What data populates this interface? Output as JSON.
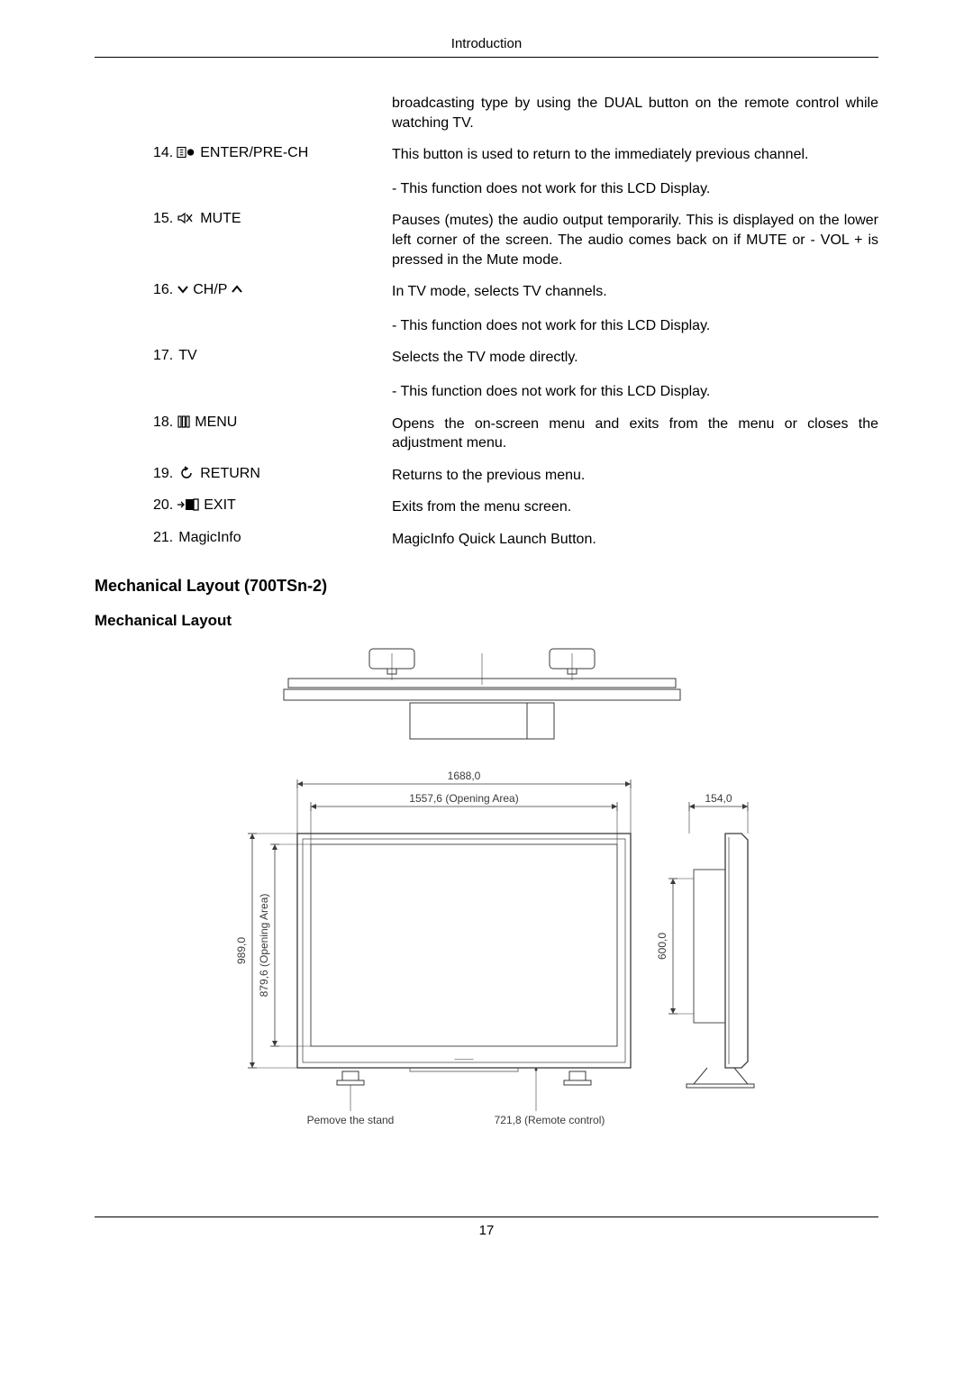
{
  "page": {
    "header": "Introduction",
    "number": "17"
  },
  "intro_text": "broadcasting type by using the DUAL button on the remote control while watching TV.",
  "items": {
    "i14": {
      "num": "14.",
      "name": "ENTER/PRE-CH",
      "desc": "This button is used to return to the immediately previous channel.",
      "note": "- This function does not work for this LCD Display."
    },
    "i15": {
      "num": "15.",
      "name": "MUTE",
      "desc": "Pauses (mutes) the audio output temporarily. This is displayed on the lower left corner of the screen. The audio comes back on if MUTE or - VOL + is pressed in the Mute mode."
    },
    "i16": {
      "num": "16.",
      "name_pre": "CH/P",
      "desc": "In TV mode, selects TV channels.",
      "note": "- This function does not work for this LCD Display."
    },
    "i17": {
      "num": "17.",
      "name": "TV",
      "desc": "Selects the TV mode directly.",
      "note": "- This function does not work for this LCD Display."
    },
    "i18": {
      "num": "18.",
      "name": "MENU",
      "desc": "Opens the on-screen menu and exits from the menu or closes the adjustment menu."
    },
    "i19": {
      "num": "19.",
      "name": "RETURN",
      "desc": "Returns to the previous menu."
    },
    "i20": {
      "num": "20.",
      "name": "EXIT",
      "desc": "Exits from the menu screen."
    },
    "i21": {
      "num": "21.",
      "name": "MagicInfo",
      "desc": "MagicInfo Quick Launch Button."
    }
  },
  "section": {
    "title": "Mechanical Layout (700TSn-2)",
    "subtitle": "Mechanical Layout"
  },
  "diagram": {
    "top_width": "1688,0",
    "opening_width": "1557,6 (Opening Area)",
    "side_depth": "154,0",
    "height": "989,0",
    "opening_height": "879,6 (Opening Area)",
    "mount_height": "600,0",
    "remove_stand": "Pemove the stand",
    "remote": "721,8 (Remote control)",
    "colors": {
      "line": "#3a3a3a",
      "text": "#3a3a3a"
    }
  }
}
